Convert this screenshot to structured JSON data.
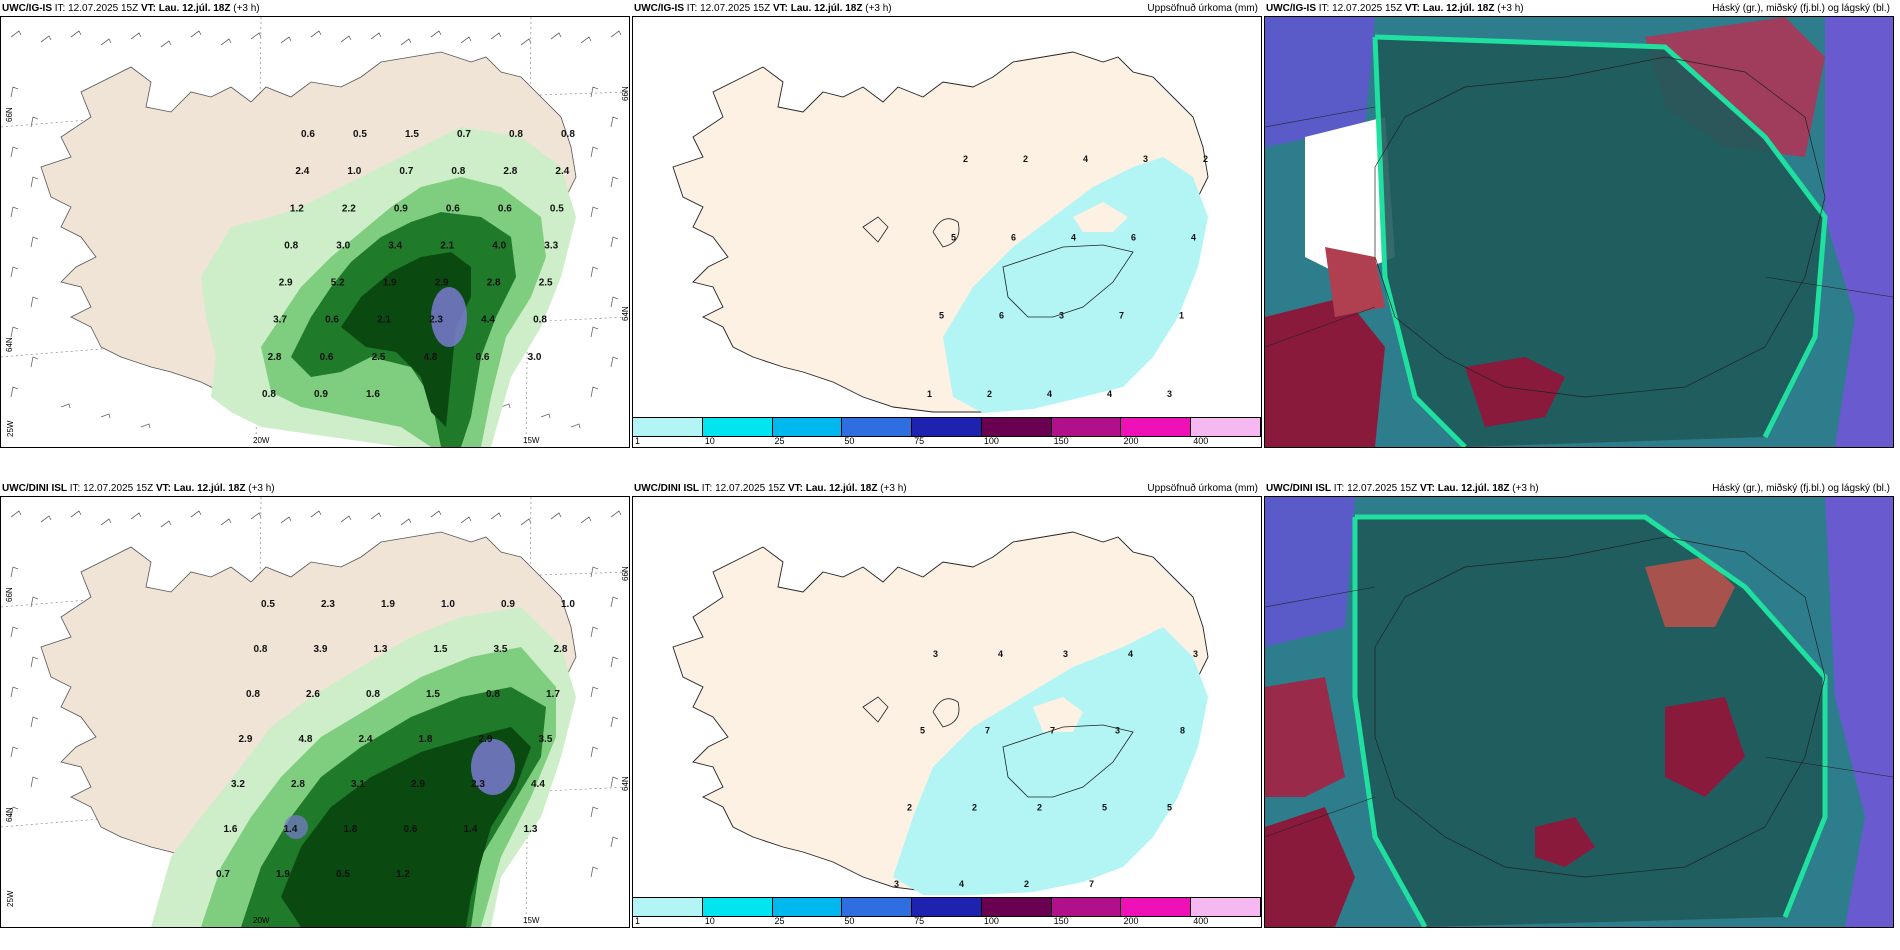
{
  "panels": [
    {
      "model": "UWC/IG-IS",
      "it_label": "IT:",
      "it": "12.07.2025 15Z",
      "vt_label": "VT:",
      "vt": "Lau. 12.júl. 18Z",
      "lead": "(+3 h)",
      "right": ""
    },
    {
      "model": "UWC/IG-IS",
      "it_label": "IT:",
      "it": "12.07.2025 15Z",
      "vt_label": "VT:",
      "vt": "Lau. 12.júl. 18Z",
      "lead": "(+3 h)",
      "right": "Uppsöfnuð úrkoma (mm)"
    },
    {
      "model": "UWC/IG-IS",
      "it_label": "IT:",
      "it": "12.07.2025 15Z",
      "vt_label": "VT:",
      "vt": "Lau. 12.júl. 18Z",
      "lead": "(+3 h)",
      "right": "Háský (gr.), miðský (fj.bl.) og lágský (bl.)"
    },
    {
      "model": "UWC/DINI ISL",
      "it_label": "IT:",
      "it": "12.07.2025 15Z",
      "vt_label": "VT:",
      "vt": "Lau. 12.júl. 18Z",
      "lead": "(+3 h)",
      "right": ""
    },
    {
      "model": "UWC/DINI ISL",
      "it_label": "IT:",
      "it": "12.07.2025 15Z",
      "vt_label": "VT:",
      "vt": "Lau. 12.júl. 18Z",
      "lead": "(+3 h)",
      "right": "Uppsöfnuð úrkoma (mm)"
    },
    {
      "model": "UWC/DINI ISL",
      "it_label": "IT:",
      "it": "12.07.2025 15Z",
      "vt_label": "VT:",
      "vt": "Lau. 12.júl. 18Z",
      "lead": "(+3 h)",
      "right": "Háský (gr.), miðský (fj.bl.) og lágský (bl.)"
    }
  ],
  "coords": {
    "lat66": "66N",
    "lat64": "64N",
    "lon25": "25W",
    "lon20": "20W",
    "lon15": "15W"
  },
  "legend": {
    "ticks": [
      "1",
      "10",
      "25",
      "50",
      "75",
      "100",
      "150",
      "200",
      "400"
    ],
    "colors": [
      "#b3f5f5",
      "#00e5f0",
      "#00b8ee",
      "#2e6ee0",
      "#1e22b0",
      "#6a0050",
      "#b0108a",
      "#f010b8",
      "#f5b8f0"
    ]
  },
  "colors": {
    "land": "#efe4d6",
    "rain_light": "#cdeec8",
    "rain_mid": "#7fce7f",
    "rain_heavy": "#1f7a2a",
    "rain_extreme": "#0a4a10",
    "acc_precip": "#b3f5f5",
    "cloud_high": "#1e5a5a",
    "cloud_mid": "#2aa070",
    "cloud_low": "#5a5ac8",
    "cloud_edge": "#20e0a0"
  },
  "precip_labels_top": [
    "0.6",
    "0.5",
    "1.5",
    "0.7",
    "0.8",
    "0.8",
    "2.4",
    "1.0",
    "0.7",
    "0.8",
    "2.8",
    "2.4",
    "1.2",
    "2.2",
    "0.9",
    "0.6",
    "0.6",
    "0.5",
    "0.8",
    "3.0",
    "3.4",
    "2.1",
    "4.0",
    "3.3",
    "2.9",
    "5.2",
    "1.9",
    "2.9",
    "2.8",
    "2.5",
    "3.7",
    "0.6",
    "2.1",
    "2.3",
    "4.4",
    "0.8",
    "2.8",
    "0.6",
    "2.5",
    "4.8",
    "0.6",
    "3.0",
    "0.8",
    "0.9",
    "1.6"
  ],
  "precip_labels_bottom": [
    "0.5",
    "2.3",
    "1.9",
    "1.0",
    "0.9",
    "1.0",
    "0.8",
    "3.9",
    "1.3",
    "1.5",
    "3.5",
    "2.8",
    "0.8",
    "2.6",
    "0.8",
    "1.5",
    "0.8",
    "1.7",
    "2.9",
    "4.8",
    "2.4",
    "1.8",
    "2.9",
    "3.5",
    "3.2",
    "2.8",
    "3.1",
    "2.9",
    "2.3",
    "4.4",
    "1.6",
    "1.4",
    "1.8",
    "0.6",
    "1.4",
    "1.3",
    "0.7",
    "1.9",
    "0.5",
    "1.2"
  ],
  "acc_labels_top": [
    "2",
    "2",
    "4",
    "3",
    "2",
    "5",
    "6",
    "4",
    "6",
    "4",
    "5",
    "6",
    "3",
    "7",
    "1",
    "1",
    "2",
    "4",
    "4",
    "3"
  ],
  "acc_labels_bottom": [
    "3",
    "4",
    "3",
    "4",
    "3",
    "5",
    "7",
    "7",
    "3",
    "8",
    "2",
    "2",
    "2",
    "5",
    "5",
    "3",
    "4",
    "2",
    "7"
  ]
}
